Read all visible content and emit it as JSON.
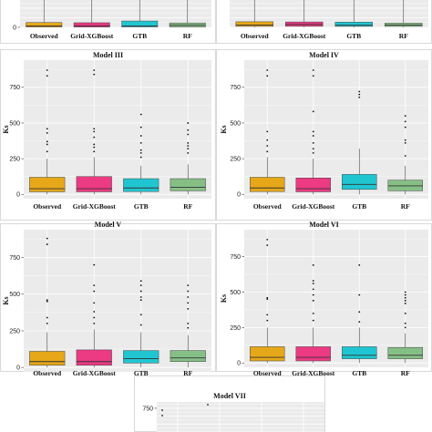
{
  "colors": {
    "Observed": "#e6a718",
    "Grid-XGBoost": "#ec3a83",
    "GTB": "#1fc6d2",
    "RF": "#86bf86",
    "panel_bg": "#ebebeb",
    "grid": "#ffffff"
  },
  "chart_data": [
    {
      "type": "box",
      "title": "",
      "ylabel": "",
      "ylim": [
        0,
        950
      ],
      "yticks": [
        0
      ],
      "categories": [
        "Observed",
        "Grid-XGBoost",
        "GTB",
        "RF"
      ],
      "boxes": [
        {
          "q1": 8,
          "median": 38,
          "q3": 125,
          "whisker_low": 0,
          "whisker_high": 950,
          "outliers": []
        },
        {
          "q1": 8,
          "median": 40,
          "q3": 120,
          "whisker_low": 0,
          "whisker_high": 950,
          "outliers": []
        },
        {
          "q1": 10,
          "median": 35,
          "q3": 165,
          "whisker_low": 0,
          "whisker_high": 950,
          "outliers": []
        },
        {
          "q1": 10,
          "median": 55,
          "q3": 115,
          "whisker_low": 0,
          "whisker_high": 950,
          "outliers": []
        }
      ]
    },
    {
      "type": "box",
      "title": "",
      "ylabel": "",
      "ylim": [
        0,
        950
      ],
      "yticks": [],
      "categories": [
        "Observed",
        "Grid-XGBoost",
        "GTB",
        "RF"
      ],
      "boxes": [
        {
          "q1": 25,
          "median": 60,
          "q3": 145,
          "whisker_low": 0,
          "whisker_high": 950,
          "outliers": []
        },
        {
          "q1": 28,
          "median": 75,
          "q3": 140,
          "whisker_low": 0,
          "whisker_high": 950,
          "outliers": []
        },
        {
          "q1": 25,
          "median": 55,
          "q3": 135,
          "whisker_low": 0,
          "whisker_high": 950,
          "outliers": []
        },
        {
          "q1": 25,
          "median": 60,
          "q3": 110,
          "whisker_low": 0,
          "whisker_high": 950,
          "outliers": []
        }
      ]
    },
    {
      "type": "box",
      "title": "Model III",
      "ylabel": "Ks",
      "ylim": [
        -30,
        940
      ],
      "yticks": [
        0,
        250,
        500,
        750
      ],
      "categories": [
        "Observed",
        "Grid-XGBoost",
        "GTB",
        "RF"
      ],
      "boxes": [
        {
          "q1": 18,
          "median": 40,
          "q3": 120,
          "whisker_low": 0,
          "whisker_high": 250,
          "outliers": [
            300,
            350,
            370,
            430,
            460,
            830,
            870
          ]
        },
        {
          "q1": 18,
          "median": 40,
          "q3": 125,
          "whisker_low": 0,
          "whisker_high": 260,
          "outliers": [
            300,
            330,
            350,
            400,
            440,
            460,
            840,
            870
          ]
        },
        {
          "q1": 20,
          "median": 45,
          "q3": 110,
          "whisker_low": 0,
          "whisker_high": 200,
          "outliers": [
            260,
            290,
            310,
            360,
            410,
            470,
            560
          ]
        },
        {
          "q1": 25,
          "median": 50,
          "q3": 110,
          "whisker_low": 0,
          "whisker_high": 210,
          "outliers": [
            290,
            320,
            340,
            360,
            420,
            450,
            500
          ]
        }
      ]
    },
    {
      "type": "box",
      "title": "Model IV",
      "ylabel": "Ks",
      "ylim": [
        -30,
        940
      ],
      "yticks": [
        0,
        250,
        500,
        750
      ],
      "categories": [
        "Observed",
        "Grid-XGBoost",
        "GTB",
        "RF"
      ],
      "boxes": [
        {
          "q1": 20,
          "median": 45,
          "q3": 120,
          "whisker_low": 0,
          "whisker_high": 260,
          "outliers": [
            300,
            340,
            380,
            440,
            830,
            870
          ]
        },
        {
          "q1": 18,
          "median": 40,
          "q3": 115,
          "whisker_low": 0,
          "whisker_high": 250,
          "outliers": [
            290,
            320,
            360,
            410,
            440,
            580,
            830,
            870
          ]
        },
        {
          "q1": 35,
          "median": 70,
          "q3": 140,
          "whisker_low": 0,
          "whisker_high": 320,
          "outliers": [
            680,
            700,
            720
          ]
        },
        {
          "q1": 25,
          "median": 60,
          "q3": 100,
          "whisker_low": 0,
          "whisker_high": 200,
          "outliers": [
            270,
            360,
            380,
            470,
            510,
            550
          ]
        }
      ]
    },
    {
      "type": "box",
      "title": "Model V",
      "ylabel": "Ks",
      "ylim": [
        -30,
        940
      ],
      "yticks": [
        0,
        250,
        500,
        750
      ],
      "categories": [
        "Observed",
        "Grid-XGBoost",
        "GTB",
        "RF"
      ],
      "boxes": [
        {
          "q1": 15,
          "median": 40,
          "q3": 110,
          "whisker_low": 0,
          "whisker_high": 240,
          "outliers": [
            300,
            340,
            450,
            460,
            840,
            880
          ]
        },
        {
          "q1": 15,
          "median": 40,
          "q3": 120,
          "whisker_low": 0,
          "whisker_high": 260,
          "outliers": [
            300,
            340,
            380,
            440,
            520,
            560,
            700
          ]
        },
        {
          "q1": 30,
          "median": 60,
          "q3": 115,
          "whisker_low": 0,
          "whisker_high": 240,
          "outliers": [
            290,
            360,
            460,
            480,
            520,
            560,
            590
          ]
        },
        {
          "q1": 40,
          "median": 65,
          "q3": 115,
          "whisker_low": 0,
          "whisker_high": 220,
          "outliers": [
            270,
            300,
            400,
            440,
            480,
            520,
            560
          ]
        }
      ]
    },
    {
      "type": "box",
      "title": "Model VI",
      "ylabel": "Ks",
      "ylim": [
        -30,
        940
      ],
      "yticks": [
        0,
        250,
        500,
        750
      ],
      "categories": [
        "Observed",
        "Grid-XGBoost",
        "GTB",
        "RF"
      ],
      "boxes": [
        {
          "q1": 15,
          "median": 40,
          "q3": 115,
          "whisker_low": 0,
          "whisker_high": 250,
          "outliers": [
            300,
            340,
            450,
            460,
            830,
            870
          ]
        },
        {
          "q1": 15,
          "median": 40,
          "q3": 115,
          "whisker_low": 0,
          "whisker_high": 250,
          "outliers": [
            300,
            350,
            440,
            480,
            520,
            560,
            580,
            690
          ]
        },
        {
          "q1": 30,
          "median": 55,
          "q3": 115,
          "whisker_low": 0,
          "whisker_high": 250,
          "outliers": [
            290,
            360,
            480,
            690
          ]
        },
        {
          "q1": 30,
          "median": 55,
          "q3": 110,
          "whisker_low": 0,
          "whisker_high": 210,
          "outliers": [
            250,
            280,
            350,
            420,
            440,
            460,
            480,
            500
          ]
        }
      ]
    },
    {
      "type": "box",
      "title": "Model VII",
      "ylabel": "",
      "ylim": [
        0,
        950
      ],
      "yticks": [
        750
      ],
      "categories": [],
      "boxes": []
    }
  ]
}
